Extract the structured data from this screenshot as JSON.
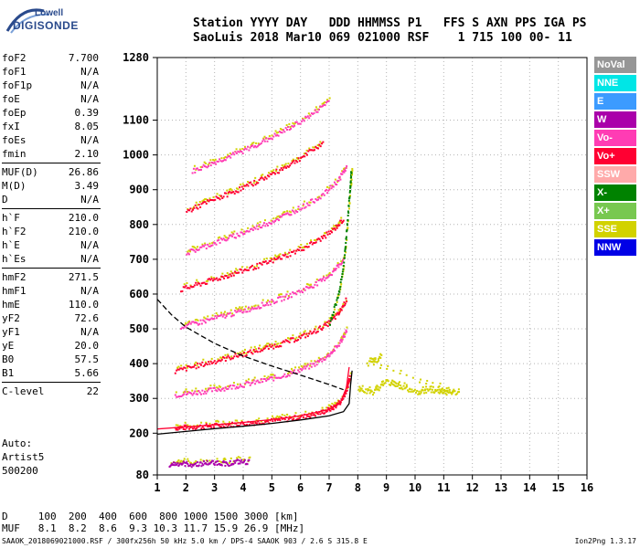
{
  "logo": {
    "line1": "Lowell",
    "line2": "DIGISONDE"
  },
  "header": {
    "line1": "Station YYYY DAY   DDD HHMMSS P1   FFS S AXN PPS IGA PS",
    "line2": "SaoLuis 2018 Mar10 069 021000 RSF    1 715 100 00- 11"
  },
  "parameters": [
    {
      "label": "foF2",
      "value": "7.700"
    },
    {
      "label": "foF1",
      "value": "N/A"
    },
    {
      "label": "foF1p",
      "value": "N/A"
    },
    {
      "label": "foE",
      "value": "N/A"
    },
    {
      "label": "foEp",
      "value": "0.39"
    },
    {
      "label": "fxI",
      "value": "8.05"
    },
    {
      "label": "foEs",
      "value": "N/A"
    },
    {
      "label": "fmin",
      "value": "2.10"
    },
    {
      "sep": true
    },
    {
      "label": "MUF(D)",
      "value": "26.86"
    },
    {
      "label": "M(D)",
      "value": "3.49"
    },
    {
      "label": "D",
      "value": "N/A"
    },
    {
      "sep": true
    },
    {
      "label": "h`F",
      "value": "210.0"
    },
    {
      "label": "h`F2",
      "value": "210.0"
    },
    {
      "label": "h`E",
      "value": "N/A"
    },
    {
      "label": "h`Es",
      "value": "N/A"
    },
    {
      "sep": true
    },
    {
      "label": "hmF2",
      "value": "271.5"
    },
    {
      "label": "hmF1",
      "value": "N/A"
    },
    {
      "label": "hmE",
      "value": "110.0"
    },
    {
      "label": "yF2",
      "value": "72.6"
    },
    {
      "label": "yF1",
      "value": "N/A"
    },
    {
      "label": "yE",
      "value": "20.0"
    },
    {
      "label": "B0",
      "value": "57.5"
    },
    {
      "label": "B1",
      "value": "5.66"
    },
    {
      "sep": true
    },
    {
      "label": "C-level",
      "value": "22"
    }
  ],
  "auto": {
    "line1": "Auto:",
    "line2": "Artist5",
    "line3": "500200"
  },
  "muf_table": {
    "d_row": "D     100  200  400  600  800 1000 1500 3000 [km]",
    "muf_row": "MUF   8.1  8.2  8.6  9.3 10.3 11.7 15.9 26.9 [MHz]"
  },
  "footer": {
    "left": "SAAOK_2018069021000.RSF / 300fx256h 50 kHz 5.0 km / DPS-4 SAAOK 903 / 2.6 S 315.8 E",
    "right": "Ion2Png 1.3.17"
  },
  "legend": [
    {
      "label": "NoVal",
      "color": "#969696"
    },
    {
      "label": "NNE",
      "color": "#00e6e6"
    },
    {
      "label": "E",
      "color": "#3c9bff"
    },
    {
      "label": "W",
      "color": "#aa00aa"
    },
    {
      "label": "Vo-",
      "color": "#ff3cb4"
    },
    {
      "label": "Vo+",
      "color": "#ff0032"
    },
    {
      "label": "SSW",
      "color": "#ffaaaa"
    },
    {
      "label": "X-",
      "color": "#008200"
    },
    {
      "label": "X+",
      "color": "#78c850"
    },
    {
      "label": "SSE",
      "color": "#d2d200"
    },
    {
      "label": "NNW",
      "color": "#0000e6"
    }
  ],
  "chart_data": {
    "type": "scatter",
    "xlim": [
      1,
      16
    ],
    "ylim": [
      80,
      1280
    ],
    "x_ticks": [
      1,
      2,
      3,
      4,
      5,
      6,
      7,
      8,
      9,
      10,
      11,
      12,
      13,
      14,
      15,
      16
    ],
    "y_ticks": [
      80,
      200,
      300,
      400,
      500,
      600,
      700,
      800,
      900,
      1000,
      1100,
      1280
    ],
    "xlabel": "",
    "ylabel": "",
    "grid": "dotted",
    "legend_position": "right",
    "traces": [
      {
        "name": "o-trace-1",
        "color": "#ff0032",
        "points": [
          [
            1.6,
            218
          ],
          [
            2.0,
            219
          ],
          [
            2.6,
            222
          ],
          [
            3.2,
            225
          ],
          [
            3.8,
            229
          ],
          [
            4.4,
            233
          ],
          [
            5.0,
            238
          ],
          [
            5.6,
            244
          ],
          [
            6.2,
            252
          ],
          [
            6.7,
            262
          ],
          [
            7.1,
            275
          ],
          [
            7.4,
            295
          ],
          [
            7.6,
            330
          ],
          [
            7.7,
            370
          ]
        ]
      },
      {
        "name": "o-trace-2",
        "color": "#ff3cb4",
        "points": [
          [
            1.6,
            312
          ],
          [
            2.2,
            318
          ],
          [
            2.8,
            325
          ],
          [
            3.4,
            333
          ],
          [
            4.0,
            342
          ],
          [
            4.6,
            352
          ],
          [
            5.2,
            364
          ],
          [
            5.8,
            379
          ],
          [
            6.4,
            398
          ],
          [
            6.9,
            423
          ],
          [
            7.3,
            455
          ],
          [
            7.6,
            500
          ]
        ]
      },
      {
        "name": "o-trace-3",
        "color": "#ff0032",
        "points": [
          [
            1.6,
            380
          ],
          [
            2.2,
            393
          ],
          [
            2.8,
            405
          ],
          [
            3.4,
            418
          ],
          [
            4.0,
            430
          ],
          [
            4.6,
            443
          ],
          [
            5.2,
            457
          ],
          [
            5.8,
            473
          ],
          [
            6.4,
            492
          ],
          [
            6.9,
            515
          ],
          [
            7.3,
            545
          ],
          [
            7.6,
            590
          ]
        ]
      },
      {
        "name": "o-trace-4",
        "color": "#ff3cb4",
        "points": [
          [
            1.8,
            508
          ],
          [
            2.4,
            520
          ],
          [
            3.0,
            533
          ],
          [
            3.6,
            546
          ],
          [
            4.2,
            560
          ],
          [
            4.8,
            575
          ],
          [
            5.4,
            592
          ],
          [
            6.0,
            612
          ],
          [
            6.6,
            635
          ],
          [
            7.1,
            665
          ],
          [
            7.5,
            705
          ]
        ]
      },
      {
        "name": "o-trace-5",
        "color": "#ff0032",
        "points": [
          [
            1.8,
            615
          ],
          [
            2.4,
            630
          ],
          [
            3.0,
            645
          ],
          [
            3.6,
            660
          ],
          [
            4.2,
            676
          ],
          [
            4.8,
            692
          ],
          [
            5.4,
            711
          ],
          [
            6.0,
            732
          ],
          [
            6.6,
            757
          ],
          [
            7.1,
            785
          ],
          [
            7.5,
            820
          ]
        ]
      },
      {
        "name": "o-trace-6",
        "color": "#ff3cb4",
        "points": [
          [
            2.0,
            720
          ],
          [
            2.6,
            738
          ],
          [
            3.2,
            756
          ],
          [
            3.8,
            773
          ],
          [
            4.4,
            792
          ],
          [
            5.0,
            812
          ],
          [
            5.6,
            835
          ],
          [
            6.2,
            860
          ],
          [
            6.8,
            890
          ],
          [
            7.3,
            930
          ],
          [
            7.6,
            970
          ]
        ]
      },
      {
        "name": "o-trace-7",
        "color": "#ff0032",
        "points": [
          [
            2.0,
            840
          ],
          [
            2.6,
            862
          ],
          [
            3.2,
            882
          ],
          [
            3.8,
            902
          ],
          [
            4.4,
            924
          ],
          [
            5.0,
            948
          ],
          [
            5.6,
            975
          ],
          [
            6.2,
            1005
          ],
          [
            6.8,
            1040
          ]
        ]
      },
      {
        "name": "o-trace-8",
        "color": "#ff3cb4",
        "points": [
          [
            2.2,
            955
          ],
          [
            2.8,
            975
          ],
          [
            3.4,
            995
          ],
          [
            4.0,
            1015
          ],
          [
            4.6,
            1038
          ],
          [
            5.2,
            1062
          ],
          [
            5.8,
            1090
          ],
          [
            6.4,
            1120
          ],
          [
            7.0,
            1160
          ]
        ]
      },
      {
        "name": "x-trace",
        "color": "#008200",
        "points": [
          [
            7.0,
            520
          ],
          [
            7.3,
            600
          ],
          [
            7.5,
            700
          ],
          [
            7.6,
            800
          ],
          [
            7.7,
            900
          ],
          [
            7.75,
            960
          ]
        ]
      },
      {
        "name": "sse-blob",
        "color": "#d2d200",
        "points": [
          [
            8.0,
            330
          ],
          [
            8.5,
            320
          ],
          [
            9.0,
            350
          ],
          [
            9.5,
            335
          ],
          [
            10.0,
            320
          ],
          [
            10.5,
            325
          ],
          [
            11.0,
            320
          ],
          [
            11.5,
            318
          ],
          [
            8.3,
            400
          ],
          [
            8.8,
            420
          ]
        ]
      },
      {
        "name": "low-trace",
        "color": "#aa00aa",
        "points": [
          [
            1.4,
            113
          ],
          [
            1.8,
            115
          ],
          [
            2.2,
            112
          ],
          [
            2.6,
            116
          ],
          [
            3.0,
            118
          ],
          [
            3.4,
            115
          ],
          [
            3.8,
            120
          ],
          [
            4.2,
            118
          ]
        ]
      }
    ],
    "curves": [
      {
        "name": "profile-black",
        "style": "solid",
        "color": "#000000",
        "points": [
          [
            1.0,
            197
          ],
          [
            2.0,
            205
          ],
          [
            3.0,
            213
          ],
          [
            4.0,
            220
          ],
          [
            5.0,
            228
          ],
          [
            6.0,
            238
          ],
          [
            7.0,
            250
          ],
          [
            7.5,
            262
          ],
          [
            7.7,
            285
          ],
          [
            7.75,
            340
          ],
          [
            7.8,
            380
          ]
        ]
      },
      {
        "name": "profile-red",
        "style": "solid",
        "color": "#ff0032",
        "points": [
          [
            1.0,
            212
          ],
          [
            2.0,
            218
          ],
          [
            3.0,
            224
          ],
          [
            4.0,
            231
          ],
          [
            5.0,
            239
          ],
          [
            6.0,
            250
          ],
          [
            7.0,
            268
          ],
          [
            7.4,
            290
          ],
          [
            7.6,
            330
          ],
          [
            7.7,
            390
          ]
        ]
      },
      {
        "name": "profile-dashed",
        "style": "dashed",
        "color": "#000000",
        "points": [
          [
            1.0,
            585
          ],
          [
            1.5,
            540
          ],
          [
            2.0,
            505
          ],
          [
            3.0,
            458
          ],
          [
            4.0,
            422
          ],
          [
            5.0,
            393
          ],
          [
            6.0,
            367
          ],
          [
            7.0,
            340
          ],
          [
            7.5,
            325
          ]
        ]
      }
    ]
  }
}
